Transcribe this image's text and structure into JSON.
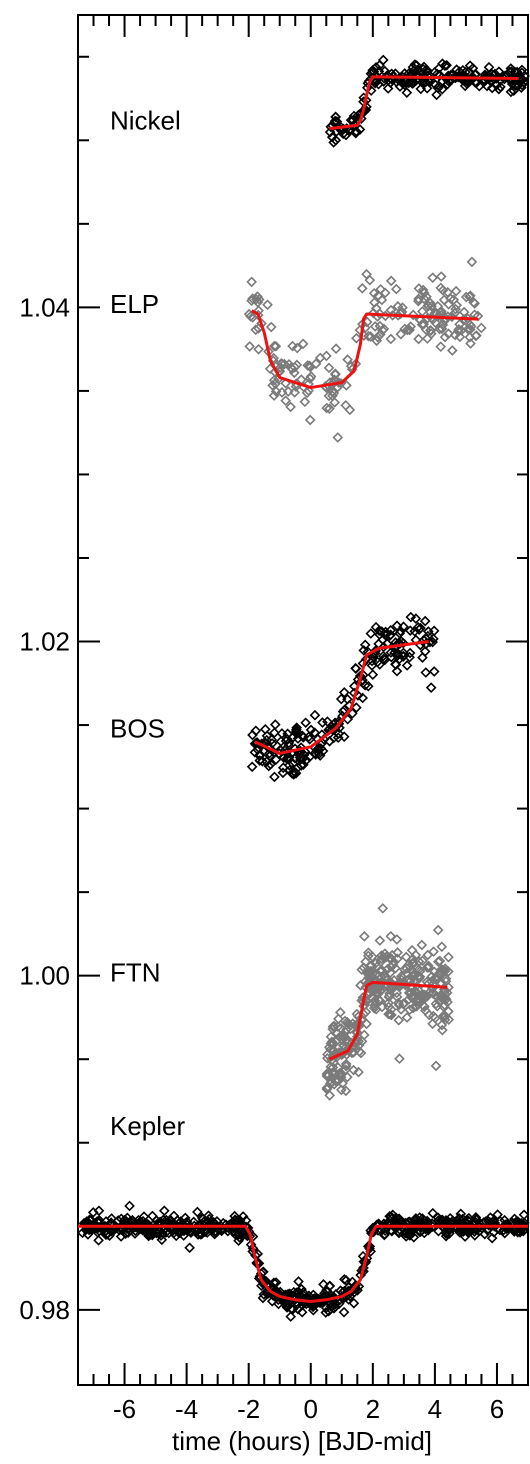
{
  "chart_data": {
    "type": "scatter",
    "title": "",
    "xlabel": "time (hours) [BJD-mid]",
    "ylabel": "",
    "xlim": [
      -7.5,
      7.0
    ],
    "ylim": [
      0.9755,
      1.0575
    ],
    "x_major_ticks": [
      -6,
      -4,
      -2,
      0,
      2,
      4,
      6
    ],
    "x_tick_labels": [
      "-6",
      "-4",
      "-2",
      "0",
      "2",
      "4",
      "6"
    ],
    "y_major_ticks": [
      0.98,
      1.0,
      1.02,
      1.04
    ],
    "y_tick_labels": [
      "0.98",
      "1.00",
      "1.02",
      "1.04"
    ],
    "grid": false,
    "colors": {
      "model": "#ee1111",
      "black_points": "#000000",
      "gray_points": "#7a7a7a"
    },
    "series": [
      {
        "name": "Nickel",
        "marker_color": "#000000",
        "label_y": 1.0512,
        "x_range": [
          0.6,
          7.0
        ],
        "model": {
          "x": [
            0.6,
            1.5,
            1.6,
            1.7,
            1.8,
            1.9,
            2.0,
            6.7
          ],
          "y": [
            1.0507,
            1.0509,
            1.0512,
            1.0518,
            1.0527,
            1.0535,
            1.0538,
            1.0537
          ]
        },
        "noise": 0.0007,
        "spike_freq": 0.1,
        "spike_amp": 0.0004
      },
      {
        "name": "ELP",
        "marker_color": "#7a7a7a",
        "label_y": 1.0402,
        "x_range": [
          -2.0,
          5.5
        ],
        "model": {
          "x": [
            -1.9,
            -1.7,
            -1.5,
            -1.3,
            -1.0,
            0.0,
            1.0,
            1.4,
            1.6,
            1.7,
            1.8,
            5.4
          ],
          "y": [
            1.0398,
            1.0396,
            1.0385,
            1.0368,
            1.0358,
            1.0352,
            1.0355,
            1.0362,
            1.0378,
            1.0393,
            1.0396,
            1.0393
          ]
        },
        "noise": 0.002,
        "spike_freq": 0.12,
        "spike_amp": 0.003
      },
      {
        "name": "BOS",
        "marker_color": "#000000",
        "label_y": 1.0148,
        "x_range": [
          -1.9,
          4.0
        ],
        "model": {
          "x": [
            -1.8,
            -1.0,
            0.0,
            0.8,
            1.3,
            1.6,
            1.8,
            2.2,
            3.8
          ],
          "y": [
            1.014,
            1.0133,
            1.0137,
            1.0148,
            1.016,
            1.0178,
            1.0192,
            1.0196,
            1.02
          ]
        },
        "noise": 0.0015,
        "spike_freq": 0.1,
        "spike_amp": 0.002
      },
      {
        "name": "FTN",
        "marker_color": "#7a7a7a",
        "label_y": 1.0002,
        "x_range": [
          0.5,
          4.5
        ],
        "model": {
          "x": [
            0.6,
            1.2,
            1.5,
            1.7,
            1.8,
            2.0,
            4.4
          ],
          "y": [
            0.995,
            0.9955,
            0.9965,
            0.9985,
            0.9994,
            0.9996,
            0.9993
          ]
        },
        "noise": 0.0022,
        "spike_freq": 0.12,
        "spike_amp": 0.003
      },
      {
        "name": "Kepler",
        "marker_color": "#000000",
        "label_y": 0.991,
        "x_range": [
          -7.5,
          7.0
        ],
        "model": {
          "x": [
            -7.5,
            -2.1,
            -1.95,
            -1.8,
            -1.6,
            -1.3,
            -1.0,
            -0.5,
            0.0,
            0.5,
            1.0,
            1.3,
            1.6,
            1.8,
            1.95,
            2.1,
            7.0
          ],
          "y": [
            0.985,
            0.985,
            0.9845,
            0.9832,
            0.9818,
            0.9811,
            0.9808,
            0.9806,
            0.9805,
            0.9806,
            0.9808,
            0.9811,
            0.9818,
            0.9832,
            0.9845,
            0.985,
            0.985
          ]
        },
        "noise": 0.0006,
        "spike_freq": 0.06,
        "spike_amp": 0.001
      }
    ]
  }
}
